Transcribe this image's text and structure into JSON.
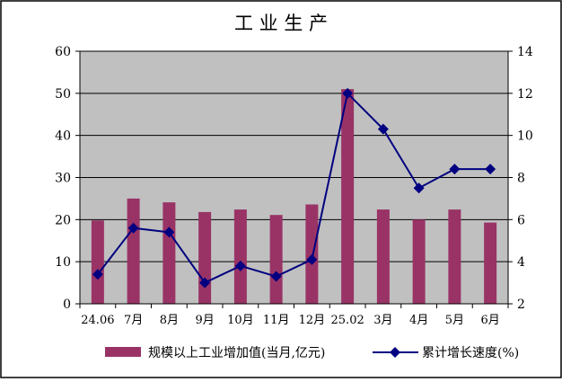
{
  "chart_data": {
    "type": "bar",
    "title": "工 业 生 产",
    "categories": [
      "24.06",
      "7月",
      "8月",
      "9月",
      "10月",
      "11月",
      "12月",
      "25.02",
      "3月",
      "4月",
      "5月",
      "6月"
    ],
    "series": [
      {
        "name": "规模以上工业增加值(当月,亿元)",
        "type": "bar",
        "axis": "left",
        "color": "#993366",
        "values": [
          19.8,
          25.0,
          24.1,
          21.8,
          22.4,
          21.1,
          23.6,
          51.0,
          22.4,
          20.0,
          22.4,
          19.3
        ]
      },
      {
        "name": "累计增长速度(%)",
        "type": "line",
        "axis": "right",
        "color": "#000080",
        "values": [
          3.4,
          5.6,
          5.4,
          3.0,
          3.8,
          3.3,
          4.1,
          12.0,
          10.3,
          7.5,
          8.4,
          8.4
        ]
      }
    ],
    "y_left": {
      "min": 0,
      "max": 60,
      "ticks": [
        0,
        10,
        20,
        30,
        40,
        50,
        60
      ]
    },
    "y_right": {
      "min": 2,
      "max": 14,
      "ticks": [
        2,
        4,
        6,
        8,
        10,
        12,
        14
      ]
    },
    "grid": true,
    "legend": "bottom",
    "plot_background": "#c0c0c0"
  }
}
